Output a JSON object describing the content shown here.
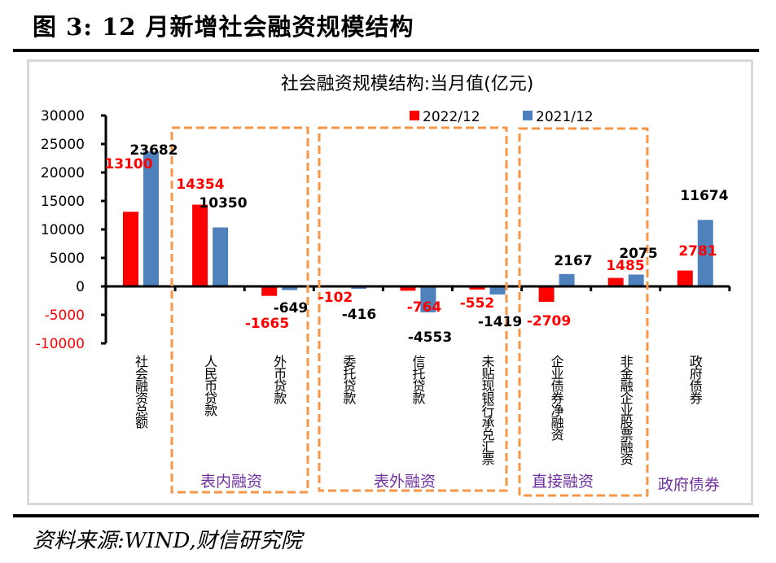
{
  "figure": {
    "title": "图 3:  12 月新增社会融资规模结构",
    "source": "资料来源:WIND,财信研究院"
  },
  "colors": {
    "series_2022": "#ff0000",
    "series_2021": "#4f81bd",
    "group_box": "#f79646",
    "group_label": "#7030a0",
    "frame": "#d9d9d9"
  },
  "chart_data": {
    "type": "bar",
    "title": "社会融资规模结构:当月值(亿元)",
    "xlabel": "",
    "ylabel": "",
    "ylim": [
      -10000,
      30000
    ],
    "yticks": [
      30000,
      25000,
      20000,
      15000,
      10000,
      5000,
      0,
      -5000,
      -10000
    ],
    "ytick_labels": [
      "30000",
      "25000",
      "20000",
      "15000",
      "10000",
      "5000",
      "0",
      "-5000",
      "-10000"
    ],
    "grid": false,
    "legend_position": "top-right",
    "categories": [
      "社会融资总额",
      "人民币贷款",
      "外币贷款",
      "委托贷款",
      "信托贷款",
      "未贴现银行承兑汇票",
      "企业债券净融资",
      "非金融企业股票融资",
      "政府债券"
    ],
    "series": [
      {
        "name": "2022/12",
        "values": [
          13100,
          14354,
          -1665,
          -102,
          -764,
          -552,
          -2709,
          1485,
          2781
        ],
        "labels": [
          "13100",
          "14354",
          "-1665",
          "-102",
          "-764",
          "-552",
          "-2709",
          "1485",
          "2781"
        ]
      },
      {
        "name": "2021/12",
        "values": [
          23682,
          10350,
          -649,
          -416,
          -4553,
          -1419,
          2167,
          2075,
          11674
        ],
        "labels": [
          "23682",
          "10350",
          "-649",
          "-416",
          "-4553",
          "-1419",
          "2167",
          "2075",
          "11674"
        ]
      }
    ],
    "groups": [
      {
        "label": "表内融资",
        "categories": [
          "人民币贷款",
          "外币贷款"
        ],
        "boxed": true
      },
      {
        "label": "表外融资",
        "categories": [
          "委托贷款",
          "信托贷款",
          "未贴现银行承兑汇票"
        ],
        "boxed": true
      },
      {
        "label": "直接融资",
        "categories": [
          "企业债券净融资",
          "非金融企业股票融资"
        ],
        "boxed": true
      },
      {
        "label": "政府债券",
        "categories": [
          "政府债券"
        ],
        "boxed": false
      }
    ]
  }
}
